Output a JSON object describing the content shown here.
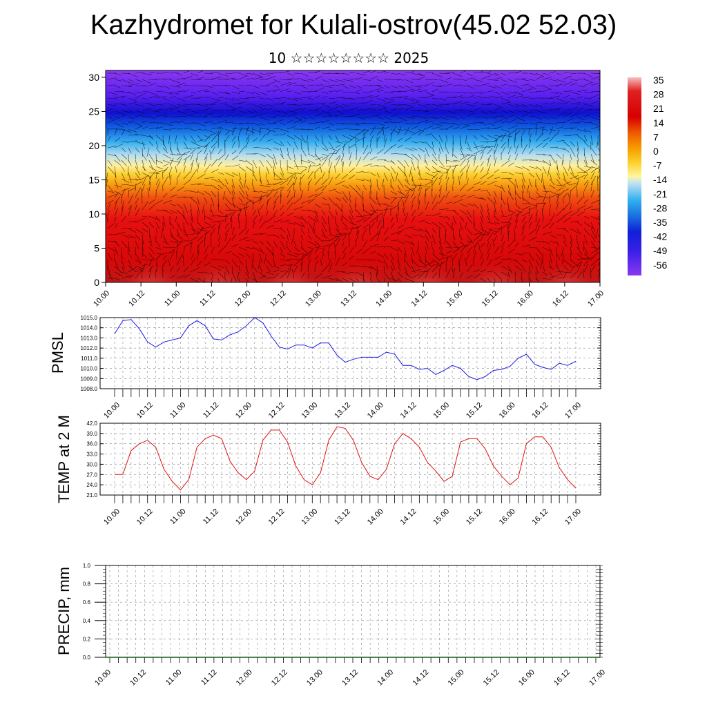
{
  "title": "Kazhydromet for Kulali-ostrov(45.02 52.03)",
  "subtitle": "10 ☆☆☆☆☆☆☆☆ 2025",
  "time_ticks": [
    "10.00",
    "10.12",
    "11.00",
    "11.12",
    "12.00",
    "12.12",
    "13.00",
    "13.12",
    "14.00",
    "14.12",
    "15.00",
    "15.12",
    "16.00",
    "16.12",
    "17.00"
  ],
  "chart_data": [
    {
      "type": "heatmap",
      "title": "Kazhydromet for Kulali-ostrov(45.02 52.03)",
      "x_ticks": [
        "10.00",
        "10.12",
        "11.00",
        "11.12",
        "12.00",
        "12.12",
        "13.00",
        "13.12",
        "14.00",
        "14.12",
        "15.00",
        "15.12",
        "16.00",
        "16.12",
        "17.00"
      ],
      "y_ticks": [
        0,
        5,
        10,
        15,
        20,
        25,
        30
      ],
      "ylim": [
        0,
        31
      ],
      "colorbar_labels": [
        35,
        28,
        21,
        14,
        7,
        0,
        -7,
        -14,
        -21,
        -28,
        -35,
        -42,
        -49,
        -56
      ],
      "colorbar_colors": [
        "#f3b4b4",
        "#e02020",
        "#d40000",
        "#e85a00",
        "#f59a00",
        "#fccc2a",
        "#fff48c",
        "#c0e0f0",
        "#30b0f0",
        "#2080e0",
        "#1040e0",
        "#2020d0",
        "#5020f0",
        "#8a38f0"
      ],
      "notes": "temperature field with wind vectors overlaid"
    },
    {
      "type": "line",
      "ylabel": "PMSL",
      "ylim": [
        1008,
        1015
      ],
      "y_ticks": [
        "1008.0",
        "1009.0",
        "1010.0",
        "1011.0",
        "1012.0",
        "1013.0",
        "1014.0",
        "1015.0"
      ],
      "color": "#1a1ae6",
      "values": [
        1013.4,
        1014.7,
        1014.8,
        1013.9,
        1012.6,
        1012.1,
        1012.6,
        1012.8,
        1013.0,
        1014.2,
        1014.7,
        1014.2,
        1012.9,
        1012.8,
        1013.3,
        1013.6,
        1014.2,
        1015.0,
        1014.5,
        1013.2,
        1012.1,
        1011.9,
        1012.3,
        1012.3,
        1012.0,
        1012.5,
        1012.5,
        1011.3,
        1010.6,
        1010.9,
        1011.1,
        1011.1,
        1011.1,
        1011.6,
        1011.4,
        1010.3,
        1010.3,
        1009.9,
        1010.0,
        1009.4,
        1009.8,
        1010.3,
        1010.0,
        1009.2,
        1008.9,
        1009.2,
        1009.8,
        1009.9,
        1010.2,
        1011.0,
        1011.4,
        1010.4,
        1010.1,
        1009.9,
        1010.5,
        1010.3,
        1010.7
      ]
    },
    {
      "type": "line",
      "ylabel": "TEMP at 2 M",
      "ylim": [
        21,
        42
      ],
      "y_ticks": [
        "21.0",
        "24.0",
        "27.0",
        "30.0",
        "33.0",
        "36.0",
        "39.0",
        "42.0"
      ],
      "color": "#e01010",
      "values": [
        27.0,
        27.0,
        34.0,
        36.0,
        37.0,
        35.0,
        28.5,
        25.0,
        22.5,
        25.5,
        35.0,
        37.5,
        38.5,
        37.5,
        31.0,
        27.5,
        25.5,
        28.0,
        37.0,
        40.0,
        40.0,
        36.5,
        29.5,
        25.5,
        24.0,
        27.5,
        37.0,
        41.0,
        40.5,
        37.0,
        30.5,
        26.5,
        25.5,
        28.5,
        36.0,
        39.0,
        37.5,
        35.0,
        30.5,
        28.0,
        25.0,
        26.5,
        36.5,
        37.5,
        37.5,
        34.5,
        29.5,
        26.5,
        24.0,
        26.0,
        36.0,
        38.0,
        38.0,
        35.0,
        29.0,
        25.5,
        23.0
      ]
    },
    {
      "type": "bar",
      "ylabel": "PRECIP, mm",
      "ylim": [
        0,
        1
      ],
      "y_ticks": [
        "0.0",
        "0.2",
        "0.4",
        "0.6",
        "0.8",
        "1.0"
      ],
      "values": [
        0,
        0,
        0,
        0,
        0,
        0,
        0,
        0,
        0,
        0,
        0,
        0,
        0,
        0,
        0,
        0,
        0,
        0,
        0,
        0,
        0,
        0,
        0,
        0,
        0,
        0,
        0,
        0,
        0,
        0,
        0,
        0,
        0,
        0,
        0,
        0,
        0,
        0,
        0,
        0,
        0,
        0,
        0,
        0,
        0,
        0,
        0,
        0,
        0,
        0,
        0,
        0,
        0,
        0,
        0,
        0,
        0
      ]
    }
  ]
}
